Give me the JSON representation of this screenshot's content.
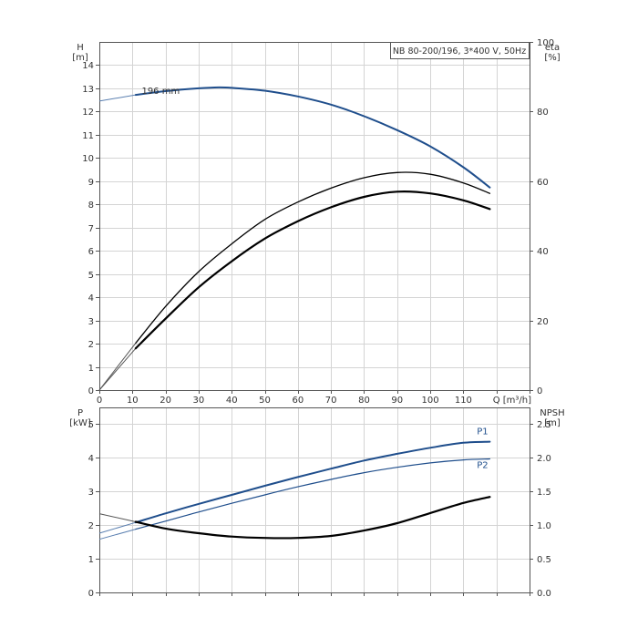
{
  "chart_data": [
    {
      "type": "line",
      "title": "NB 80-200/196, 3*400 V, 50Hz",
      "xlabel": "Q [m³/h]",
      "ylabel": [
        "H",
        "[m]"
      ],
      "ylabel_right": [
        "eta",
        "[%]"
      ],
      "xlim": [
        0,
        130
      ],
      "ylim": [
        0,
        15
      ],
      "y2lim": [
        0,
        100
      ],
      "x_ticks": [
        "0",
        "10",
        "20",
        "30",
        "40",
        "50",
        "60",
        "70",
        "80",
        "90",
        "100",
        "110",
        "Q [m³/h]"
      ],
      "y_ticks": [
        "0",
        "1",
        "2",
        "3",
        "4",
        "5",
        "6",
        "7",
        "8",
        "9",
        "10",
        "11",
        "12",
        "13",
        "14"
      ],
      "y2_ticks": [
        "0",
        "20",
        "40",
        "60",
        "80",
        "100"
      ],
      "grid": true,
      "annotations": [
        {
          "text": "196 mm",
          "x": 15,
          "y": 12.8
        }
      ],
      "series": [
        {
          "name": "",
          "axis": "left",
          "color": "#1f4e8c",
          "width": 2,
          "x": [
            11,
            20,
            30,
            36,
            40,
            50,
            60,
            70,
            80,
            90,
            100,
            110,
            118
          ],
          "y": [
            12.72,
            12.88,
            13.0,
            13.04,
            13.02,
            12.9,
            12.65,
            12.3,
            11.8,
            11.2,
            10.5,
            9.6,
            8.73
          ],
          "ext_x": [
            0,
            11
          ],
          "ext_y": [
            12.45,
            12.72
          ]
        },
        {
          "name": "",
          "axis": "right",
          "color": "#000000",
          "width": 1.3,
          "x": [
            11,
            20,
            30,
            40,
            50,
            60,
            70,
            80,
            90,
            100,
            110,
            118
          ],
          "y": [
            13.5,
            24,
            34,
            42,
            49,
            54,
            58,
            61,
            62.5,
            62,
            59.5,
            56.5
          ],
          "ext_x": [
            0,
            11
          ],
          "ext_y": [
            0,
            13.5
          ]
        },
        {
          "name": "",
          "axis": "right",
          "color": "#000000",
          "width": 2.2,
          "x": [
            11,
            20,
            30,
            40,
            50,
            60,
            70,
            80,
            90,
            100,
            110,
            118
          ],
          "y": [
            12,
            20.5,
            29.5,
            37,
            43.5,
            48.5,
            52.5,
            55.5,
            57,
            56.5,
            54.5,
            52
          ],
          "ext_x": [
            0,
            11
          ],
          "ext_y": [
            0,
            12
          ]
        }
      ]
    },
    {
      "type": "line",
      "xlabel": "",
      "ylabel": [
        "P",
        "[kW]"
      ],
      "ylabel_right": [
        "NPSH",
        "[m]"
      ],
      "xlim": [
        0,
        130
      ],
      "ylim": [
        0,
        5.5
      ],
      "y2lim": [
        0,
        2.75
      ],
      "y_ticks": [
        "0",
        "1",
        "2",
        "3",
        "4",
        "5"
      ],
      "y2_ticks": [
        "0.0",
        "0.5",
        "1.0",
        "1.5",
        "2.0",
        "2.5"
      ],
      "grid": true,
      "series": [
        {
          "name": "P1",
          "axis": "left",
          "color": "#1f4e8c",
          "width": 2,
          "x": [
            11,
            20,
            30,
            40,
            50,
            60,
            70,
            80,
            90,
            100,
            110,
            118
          ],
          "y": [
            2.08,
            2.35,
            2.63,
            2.9,
            3.17,
            3.43,
            3.68,
            3.92,
            4.12,
            4.3,
            4.45,
            4.48
          ],
          "ext_x": [
            0,
            11
          ],
          "ext_y": [
            1.76,
            2.08
          ]
        },
        {
          "name": "P2",
          "axis": "left",
          "color": "#1f4e8c",
          "width": 1.2,
          "x": [
            11,
            20,
            30,
            40,
            50,
            60,
            70,
            80,
            90,
            100,
            110,
            118
          ],
          "y": [
            1.88,
            2.12,
            2.39,
            2.65,
            2.9,
            3.14,
            3.36,
            3.56,
            3.72,
            3.85,
            3.94,
            3.97
          ],
          "ext_x": [
            0,
            11
          ],
          "ext_y": [
            1.58,
            1.88
          ]
        },
        {
          "name": "",
          "axis": "right",
          "color": "#000000",
          "width": 2.2,
          "x": [
            11,
            20,
            30,
            40,
            50,
            60,
            70,
            80,
            90,
            100,
            110,
            118
          ],
          "y": [
            1.05,
            0.95,
            0.88,
            0.83,
            0.81,
            0.81,
            0.84,
            0.92,
            1.03,
            1.18,
            1.33,
            1.42
          ],
          "ext_x": [
            0,
            11
          ],
          "ext_y": [
            1.17,
            1.05
          ]
        }
      ]
    }
  ]
}
